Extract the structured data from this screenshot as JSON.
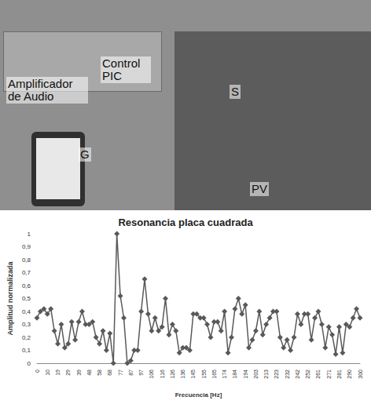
{
  "photo": {
    "labels": [
      "Amplificador de Audio",
      "Control PIC",
      "S",
      "G",
      "PV"
    ]
  },
  "chart_data": {
    "type": "line",
    "title": "Resonancia placa cuadrada",
    "x_label": "Frecuencia [Hz]",
    "y_label": "Amplitud normalizada",
    "categories": [
      "0",
      null,
      null,
      "10",
      null,
      null,
      "19",
      null,
      null,
      "29",
      null,
      null,
      "39",
      null,
      null,
      "48",
      null,
      null,
      "58",
      null,
      null,
      "68",
      null,
      null,
      "77",
      null,
      null,
      "87",
      null,
      null,
      "97",
      null,
      null,
      "106",
      null,
      null,
      "116",
      null,
      null,
      "126",
      null,
      null,
      "136",
      null,
      null,
      "145",
      null,
      null,
      "155",
      null,
      null,
      "165",
      null,
      null,
      "174",
      null,
      null,
      "184",
      null,
      null,
      "194",
      null,
      null,
      "203",
      null,
      null,
      "213",
      null,
      null,
      "223",
      null,
      null,
      "232",
      null,
      null,
      "242",
      null,
      null,
      "252",
      null,
      null,
      "261",
      null,
      null,
      "271",
      null,
      null,
      "281",
      null,
      null,
      "290",
      null,
      null,
      "300"
    ],
    "values": [
      0.35,
      0.4,
      0.42,
      0.38,
      0.42,
      0.25,
      0.15,
      0.3,
      0.12,
      0.15,
      0.32,
      0.18,
      0.32,
      0.4,
      0.3,
      0.3,
      0.32,
      0.2,
      0.15,
      0.25,
      0.1,
      0.23,
      0,
      1.0,
      0.52,
      0.35,
      0,
      0.02,
      0.1,
      0.1,
      0.4,
      0.65,
      0.38,
      0.25,
      0.35,
      0.25,
      0.28,
      0.5,
      0.22,
      0.3,
      0.25,
      0.08,
      0.12,
      0.12,
      0.1,
      0.38,
      0.38,
      0.35,
      0.35,
      0.3,
      0.2,
      0.32,
      0.32,
      0.25,
      0.4,
      0.08,
      0.2,
      0.42,
      0.5,
      0.38,
      0.45,
      0.12,
      0.18,
      0.25,
      0.4,
      0.22,
      0.3,
      0.35,
      0.4,
      0.4,
      0.2,
      0.12,
      0.18,
      0.1,
      0.2,
      0.38,
      0.3,
      0.38,
      0.38,
      0.18,
      0.35,
      0.4,
      0.3,
      0.12,
      0.28,
      0.22,
      0.07,
      0.28,
      0.08,
      0.3,
      0.28,
      0.35,
      0.42,
      0.35
    ],
    "color": "#595959",
    "marker": "diamond",
    "line_style": "solid",
    "ylim": [
      0,
      1
    ],
    "yticks": [
      0,
      {
        "value": 0.1,
        "label": "0,1"
      },
      {
        "value": 0.2,
        "label": "0,2"
      },
      {
        "value": 0.3,
        "label": "0,3"
      },
      {
        "value": 0.4,
        "label": "0,4"
      },
      {
        "value": 0.5,
        "label": "0,5"
      },
      {
        "value": 0.6,
        "label": "0,6"
      },
      {
        "value": 0.7,
        "label": "0,7"
      },
      {
        "value": 0.8,
        "label": "0,8"
      },
      {
        "value": 0.9,
        "label": "0,9"
      },
      1
    ],
    "grid": false
  }
}
